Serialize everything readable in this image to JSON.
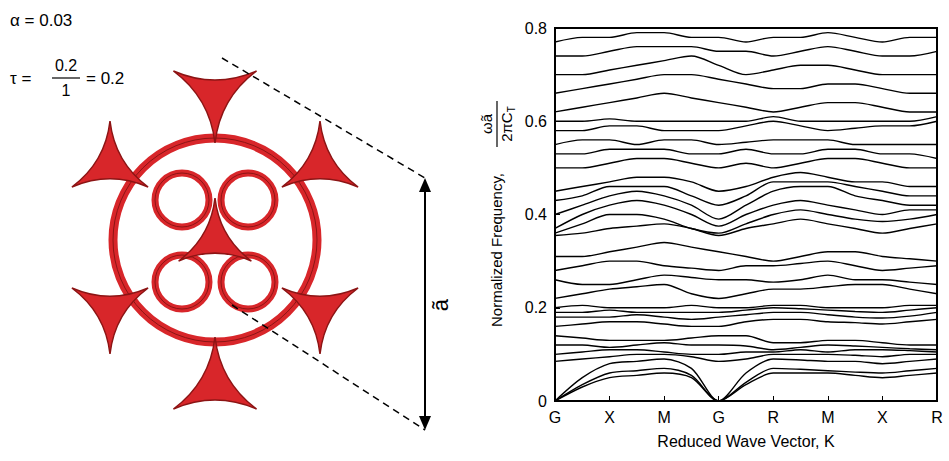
{
  "chart_data": {
    "type": "line",
    "x_label": "Reduced Wave Vector, K",
    "y_label": {
      "text": "Normalized Frequency,",
      "numerator": "ωã",
      "denominator": "2πC",
      "denominator_subscript": "T"
    },
    "annotations": {
      "alpha": "α = 0.03",
      "tau": {
        "lhs": "τ =",
        "numerator": "0.2",
        "denominator": "1",
        "rhs": "= 0.2"
      },
      "dimension": "ã"
    },
    "color": "#000000",
    "grid": false,
    "xlim": [
      0,
      7
    ],
    "xticks": [
      {
        "value": 0,
        "label": "G"
      },
      {
        "value": 1,
        "label": "X"
      },
      {
        "value": 2,
        "label": "M"
      },
      {
        "value": 3,
        "label": "G"
      },
      {
        "value": 4,
        "label": "R"
      },
      {
        "value": 5,
        "label": "M"
      },
      {
        "value": 6,
        "label": "X"
      },
      {
        "value": 7,
        "label": "R"
      }
    ],
    "ylim": [
      0,
      0.8
    ],
    "yticks": [
      0,
      0.2,
      0.4,
      0.6,
      0.8
    ],
    "x": [
      0,
      0.5,
      1,
      1.5,
      2,
      2.5,
      3,
      3.5,
      4,
      4.5,
      5,
      5.5,
      6,
      6.5,
      7
    ],
    "bands": [
      [
        0,
        0.03,
        0.05,
        0.055,
        0.06,
        0.05,
        0,
        0.035,
        0.06,
        0.06,
        0.06,
        0.055,
        0.05,
        0.055,
        0.06
      ],
      [
        0,
        0.035,
        0.06,
        0.065,
        0.07,
        0.055,
        0,
        0.04,
        0.07,
        0.068,
        0.065,
        0.062,
        0.06,
        0.065,
        0.07
      ],
      [
        0,
        0.05,
        0.08,
        0.085,
        0.09,
        0.07,
        0,
        0.06,
        0.09,
        0.088,
        0.085,
        0.085,
        0.08,
        0.085,
        0.09
      ],
      [
        0.085,
        0.09,
        0.095,
        0.1,
        0.1,
        0.095,
        0.085,
        0.09,
        0.1,
        0.1,
        0.1,
        0.098,
        0.095,
        0.1,
        0.1
      ],
      [
        0.1,
        0.105,
        0.11,
        0.11,
        0.105,
        0.1,
        0.1,
        0.105,
        0.105,
        0.11,
        0.105,
        0.11,
        0.11,
        0.108,
        0.105
      ],
      [
        0.12,
        0.12,
        0.115,
        0.12,
        0.125,
        0.12,
        0.12,
        0.118,
        0.11,
        0.115,
        0.12,
        0.118,
        0.115,
        0.112,
        0.11
      ],
      [
        0.14,
        0.135,
        0.13,
        0.13,
        0.13,
        0.135,
        0.14,
        0.14,
        0.125,
        0.125,
        0.13,
        0.13,
        0.125,
        0.12,
        0.12
      ],
      [
        0.16,
        0.165,
        0.17,
        0.17,
        0.165,
        0.16,
        0.16,
        0.17,
        0.175,
        0.175,
        0.17,
        0.168,
        0.165,
        0.17,
        0.175
      ],
      [
        0.18,
        0.18,
        0.18,
        0.185,
        0.18,
        0.175,
        0.18,
        0.185,
        0.19,
        0.19,
        0.185,
        0.18,
        0.178,
        0.182,
        0.19
      ],
      [
        0.19,
        0.19,
        0.195,
        0.19,
        0.19,
        0.19,
        0.19,
        0.195,
        0.2,
        0.198,
        0.195,
        0.192,
        0.19,
        0.195,
        0.2
      ],
      [
        0.2,
        0.205,
        0.2,
        0.2,
        0.2,
        0.205,
        0.2,
        0.2,
        0.205,
        0.205,
        0.2,
        0.2,
        0.2,
        0.205,
        0.205
      ],
      [
        0.22,
        0.23,
        0.24,
        0.245,
        0.25,
        0.23,
        0.22,
        0.23,
        0.24,
        0.24,
        0.245,
        0.25,
        0.25,
        0.24,
        0.23
      ],
      [
        0.26,
        0.25,
        0.25,
        0.26,
        0.27,
        0.265,
        0.26,
        0.26,
        0.255,
        0.26,
        0.27,
        0.26,
        0.26,
        0.255,
        0.25
      ],
      [
        0.28,
        0.29,
        0.3,
        0.3,
        0.29,
        0.285,
        0.28,
        0.29,
        0.29,
        0.295,
        0.3,
        0.29,
        0.28,
        0.285,
        0.29
      ],
      [
        0.31,
        0.31,
        0.32,
        0.33,
        0.34,
        0.33,
        0.32,
        0.31,
        0.3,
        0.31,
        0.32,
        0.32,
        0.31,
        0.305,
        0.3
      ],
      [
        0.355,
        0.36,
        0.37,
        0.375,
        0.38,
        0.37,
        0.355,
        0.37,
        0.38,
        0.39,
        0.38,
        0.37,
        0.36,
        0.37,
        0.38
      ],
      [
        0.36,
        0.38,
        0.4,
        0.4,
        0.39,
        0.37,
        0.36,
        0.38,
        0.4,
        0.41,
        0.4,
        0.39,
        0.385,
        0.39,
        0.4
      ],
      [
        0.37,
        0.4,
        0.42,
        0.43,
        0.42,
        0.4,
        0.375,
        0.4,
        0.42,
        0.43,
        0.42,
        0.41,
        0.4,
        0.41,
        0.41
      ],
      [
        0.4,
        0.42,
        0.44,
        0.45,
        0.44,
        0.42,
        0.39,
        0.42,
        0.45,
        0.46,
        0.46,
        0.44,
        0.43,
        0.42,
        0.42
      ],
      [
        0.43,
        0.44,
        0.46,
        0.46,
        0.46,
        0.44,
        0.42,
        0.44,
        0.47,
        0.47,
        0.47,
        0.46,
        0.45,
        0.44,
        0.44
      ],
      [
        0.45,
        0.46,
        0.47,
        0.48,
        0.48,
        0.47,
        0.45,
        0.46,
        0.48,
        0.49,
        0.48,
        0.47,
        0.47,
        0.46,
        0.46
      ],
      [
        0.5,
        0.5,
        0.51,
        0.52,
        0.52,
        0.51,
        0.5,
        0.51,
        0.5,
        0.51,
        0.52,
        0.52,
        0.51,
        0.5,
        0.5
      ],
      [
        0.53,
        0.53,
        0.54,
        0.54,
        0.54,
        0.53,
        0.53,
        0.54,
        0.53,
        0.53,
        0.54,
        0.54,
        0.53,
        0.53,
        0.52
      ],
      [
        0.55,
        0.56,
        0.56,
        0.55,
        0.56,
        0.56,
        0.55,
        0.555,
        0.56,
        0.56,
        0.56,
        0.55,
        0.55,
        0.55,
        0.55
      ],
      [
        0.58,
        0.58,
        0.59,
        0.59,
        0.58,
        0.58,
        0.58,
        0.59,
        0.6,
        0.59,
        0.58,
        0.585,
        0.59,
        0.59,
        0.6
      ],
      [
        0.6,
        0.6,
        0.605,
        0.6,
        0.6,
        0.6,
        0.6,
        0.6,
        0.61,
        0.6,
        0.6,
        0.6,
        0.6,
        0.6,
        0.61
      ],
      [
        0.62,
        0.63,
        0.64,
        0.65,
        0.66,
        0.65,
        0.64,
        0.63,
        0.62,
        0.63,
        0.64,
        0.64,
        0.63,
        0.62,
        0.62
      ],
      [
        0.66,
        0.67,
        0.68,
        0.69,
        0.7,
        0.7,
        0.69,
        0.68,
        0.67,
        0.67,
        0.68,
        0.68,
        0.67,
        0.66,
        0.66
      ],
      [
        0.7,
        0.7,
        0.71,
        0.72,
        0.73,
        0.74,
        0.72,
        0.7,
        0.71,
        0.72,
        0.72,
        0.71,
        0.7,
        0.7,
        0.7
      ],
      [
        0.74,
        0.74,
        0.75,
        0.76,
        0.76,
        0.76,
        0.75,
        0.75,
        0.74,
        0.75,
        0.76,
        0.75,
        0.74,
        0.74,
        0.75
      ],
      [
        0.77,
        0.78,
        0.78,
        0.79,
        0.79,
        0.78,
        0.78,
        0.77,
        0.78,
        0.78,
        0.79,
        0.78,
        0.77,
        0.78,
        0.78
      ]
    ]
  }
}
